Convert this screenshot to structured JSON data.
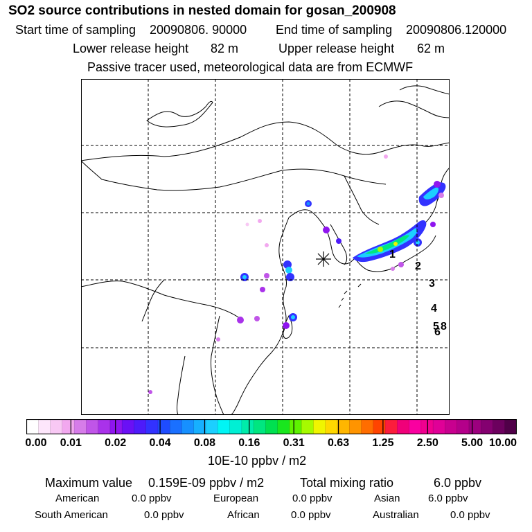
{
  "header": {
    "title": "SO2 source contributions in nested domain for gosan_200908",
    "start_label": "Start time of sampling",
    "start_value": "20090806. 90000",
    "end_label": "End time of sampling",
    "end_value": "20090806.120000",
    "lower_label": "Lower release height",
    "lower_value": "82 m",
    "upper_label": "Upper release height",
    "upper_value": "62 m",
    "note": "Passive tracer used, meteorological data are from ECMWF"
  },
  "map": {
    "number_labels": [
      "1",
      "2",
      "3",
      "4",
      "5",
      "6",
      "8"
    ]
  },
  "colorbar": {
    "ticks": [
      "0.00",
      "0.01",
      "0.02",
      "0.04",
      "0.08",
      "0.16",
      "0.31",
      "0.63",
      "1.25",
      "2.50",
      "5.00",
      "10.00"
    ],
    "unit": "10E-10 ppbv / m2",
    "colors": [
      "#ffffff",
      "#fde6fb",
      "#f8c8f4",
      "#f2a8ef",
      "#d67ce9",
      "#c055e8",
      "#a932ea",
      "#8f15ef",
      "#6a10f5",
      "#4d1bfa",
      "#3232ff",
      "#1e4cff",
      "#1a70ff",
      "#1790ff",
      "#17b0ff",
      "#1ccfff",
      "#00f5f5",
      "#00f0d4",
      "#00ecaa",
      "#00e680",
      "#00e050",
      "#19e61e",
      "#5ef200",
      "#a6fa00",
      "#f0f500",
      "#ffd800",
      "#ffb600",
      "#ff9400",
      "#ff6d00",
      "#ff4400",
      "#fb1d3c",
      "#f00079",
      "#fa00a0",
      "#f0008f",
      "#e00097",
      "#c8008f",
      "#b4008a",
      "#9c007e",
      "#840070",
      "#6c005e",
      "#500048"
    ]
  },
  "stats": {
    "max_label": "Maximum value",
    "max_value": "0.159E-09 ppbv / m2",
    "total_label": "Total mixing ratio",
    "total_value": "6.0 ppbv",
    "regions": [
      {
        "name": "American",
        "value": "0.0 ppbv"
      },
      {
        "name": "European",
        "value": "0.0 ppbv"
      },
      {
        "name": "Asian",
        "value": "6.0 ppbv"
      },
      {
        "name": "South American",
        "value": "0.0 ppbv"
      },
      {
        "name": "African",
        "value": "0.0 ppbv"
      },
      {
        "name": "Australian",
        "value": "0.0 ppbv"
      }
    ]
  }
}
